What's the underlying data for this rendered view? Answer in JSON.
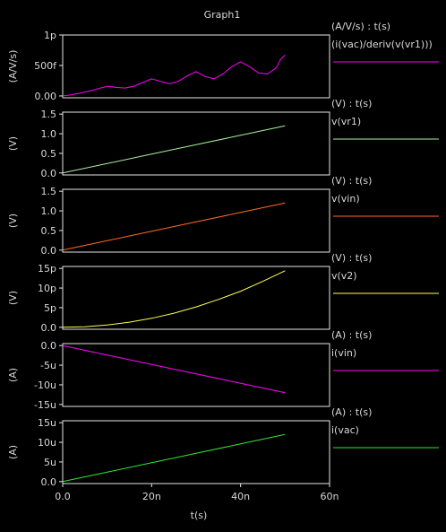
{
  "window": {
    "title": "Graph1"
  },
  "xaxis": {
    "label": "t(s)",
    "ticks": [
      0,
      20,
      40,
      60
    ],
    "tick_labels": [
      "0.0",
      "20n",
      "40n",
      "60n"
    ],
    "range": [
      0,
      60
    ]
  },
  "chart_data": [
    {
      "type": "line",
      "ylabel": "(A/V/s)",
      "legend_header": "(A/V/s) : t(s)",
      "ylim": [
        -0.03,
        1.0
      ],
      "yticks": [
        0,
        0.5,
        1.0
      ],
      "ytick_labels": [
        "0.00",
        "500f",
        "1p"
      ],
      "series": [
        {
          "name": "(i(vac)/deriv(v(vr1)))",
          "color": "#ff00ff",
          "x": [
            0,
            2,
            4,
            6,
            8,
            10,
            12,
            14,
            16,
            18,
            20,
            22,
            24,
            26,
            28,
            30,
            32,
            34,
            36,
            38,
            40,
            42,
            44,
            46,
            48,
            49,
            50
          ],
          "y": [
            0.0,
            0.02,
            0.05,
            0.08,
            0.12,
            0.16,
            0.14,
            0.13,
            0.16,
            0.22,
            0.28,
            0.24,
            0.2,
            0.24,
            0.33,
            0.4,
            0.32,
            0.28,
            0.36,
            0.48,
            0.56,
            0.48,
            0.38,
            0.36,
            0.46,
            0.6,
            0.67
          ]
        }
      ]
    },
    {
      "type": "line",
      "ylabel": "(V)",
      "legend_header": "(V) : t(s)",
      "ylim": [
        -0.05,
        1.55
      ],
      "yticks": [
        0,
        0.5,
        1.0,
        1.5
      ],
      "ytick_labels": [
        "0.0",
        "0.5",
        "1.0",
        "1.5"
      ],
      "series": [
        {
          "name": "v(vr1)",
          "color": "#a8f0a0",
          "x": [
            0,
            10,
            20,
            30,
            40,
            50
          ],
          "y": [
            0.0,
            0.24,
            0.48,
            0.72,
            0.96,
            1.2
          ]
        }
      ]
    },
    {
      "type": "line",
      "ylabel": "(V)",
      "legend_header": "(V) : t(s)",
      "ylim": [
        -0.05,
        1.55
      ],
      "yticks": [
        0,
        0.5,
        1.0,
        1.5
      ],
      "ytick_labels": [
        "0.0",
        "0.5",
        "1.0",
        "1.5"
      ],
      "series": [
        {
          "name": "v(vin)",
          "color": "#ff6a28",
          "x": [
            0,
            10,
            20,
            30,
            40,
            50
          ],
          "y": [
            0.0,
            0.24,
            0.48,
            0.72,
            0.96,
            1.2
          ]
        }
      ]
    },
    {
      "type": "line",
      "ylabel": "(V)",
      "legend_header": "(V) : t(s)",
      "ylim": [
        -0.5,
        15.5
      ],
      "yticks": [
        0,
        5,
        10,
        15
      ],
      "ytick_labels": [
        "0.0",
        "5p",
        "10p",
        "15p"
      ],
      "series": [
        {
          "name": "v(v2)",
          "color": "#ffff50",
          "x": [
            0,
            5,
            10,
            15,
            20,
            25,
            30,
            35,
            40,
            45,
            50
          ],
          "y": [
            0.0,
            0.14,
            0.58,
            1.3,
            2.3,
            3.6,
            5.2,
            7.1,
            9.2,
            11.7,
            14.4
          ]
        }
      ]
    },
    {
      "type": "line",
      "ylabel": "(A)",
      "legend_header": "(A) : t(s)",
      "ylim": [
        -15.5,
        0.5
      ],
      "yticks": [
        0,
        -5,
        -10,
        -15
      ],
      "ytick_labels": [
        "0.0",
        "-5u",
        "-10u",
        "-15u"
      ],
      "series": [
        {
          "name": "i(vin)",
          "color": "#ff00ff",
          "x": [
            0,
            10,
            20,
            30,
            40,
            50
          ],
          "y": [
            0.0,
            -2.4,
            -4.8,
            -7.2,
            -9.6,
            -12.0
          ]
        }
      ]
    },
    {
      "type": "line",
      "ylabel": "(A)",
      "legend_header": "(A) : t(s)",
      "ylim": [
        -0.5,
        15.5
      ],
      "yticks": [
        0,
        5,
        10,
        15
      ],
      "ytick_labels": [
        "0.0",
        "5u",
        "10u",
        "15u"
      ],
      "series": [
        {
          "name": "i(vac)",
          "color": "#30e830",
          "x": [
            0,
            10,
            20,
            30,
            40,
            50
          ],
          "y": [
            0.0,
            2.4,
            4.8,
            7.2,
            9.6,
            12.0
          ]
        }
      ]
    }
  ]
}
